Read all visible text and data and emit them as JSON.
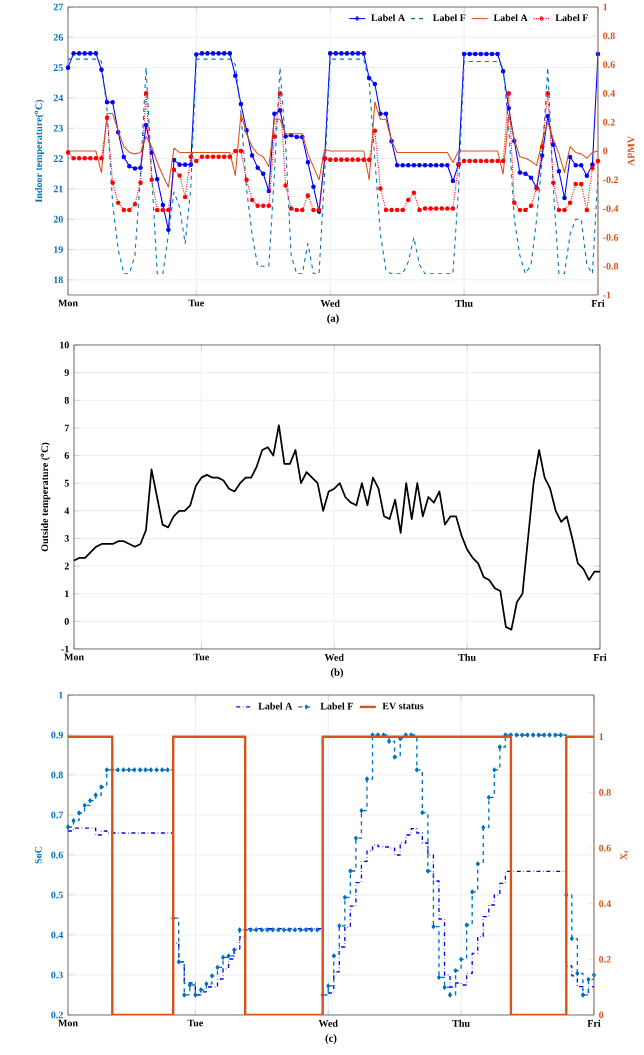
{
  "chart_data": [
    {
      "type": "line",
      "ylabel": "Indoor temperature($^{o}$C)",
      "y2label": "APMV",
      "annotations": [
        "(a)"
      ],
      "categories": [
        "Mon",
        null,
        null,
        null,
        null,
        null,
        null,
        null,
        null,
        null,
        null,
        null,
        null,
        null,
        null,
        null,
        null,
        null,
        null,
        null,
        null,
        null,
        null,
        "Tue",
        null,
        null,
        null,
        null,
        null,
        null,
        null,
        null,
        null,
        null,
        null,
        null,
        null,
        null,
        null,
        null,
        null,
        null,
        null,
        null,
        null,
        null,
        null,
        "Wed",
        null,
        null,
        null,
        null,
        null,
        null,
        null,
        null,
        null,
        null,
        null,
        null,
        null,
        null,
        null,
        null,
        null,
        null,
        null,
        null,
        null,
        null,
        null,
        "Thu",
        null,
        null,
        null,
        null,
        null,
        null,
        null,
        null,
        null,
        null,
        null,
        null,
        null,
        null,
        null,
        null,
        null,
        null,
        null,
        null,
        null,
        null,
        null,
        "Fri"
      ],
      "ylim": [
        17.5,
        27
      ],
      "yticks": [
        18,
        19,
        20,
        21,
        22,
        23,
        24,
        25,
        26,
        27
      ],
      "y2lim": [
        -1,
        1
      ],
      "y2ticks": [
        -1,
        -0.8,
        -0.6,
        -0.4,
        -0.2,
        0,
        0.2,
        0.4,
        0.6,
        0.8,
        1
      ],
      "grid": true,
      "legend": "top right",
      "series": [
        {
          "name": "Label A",
          "color": "#0000ff",
          "marker": "circle",
          "line_style": "solid",
          "values": [
            25.0,
            25.47,
            25.47,
            25.47,
            25.47,
            25.47,
            24.93,
            23.86,
            23.86,
            22.87,
            22.05,
            21.75,
            21.67,
            21.7,
            23.1,
            22.2,
            21.32,
            20.47,
            19.65,
            21.95,
            21.8,
            21.8,
            21.8,
            25.43,
            25.47,
            25.47,
            25.47,
            25.47,
            25.47,
            25.47,
            24.73,
            23.8,
            22.93,
            22.1,
            21.7,
            21.5,
            20.93,
            23.48,
            23.59,
            22.73,
            22.77,
            22.71,
            22.71,
            21.88,
            21.07,
            20.25,
            22.0,
            25.47,
            25.47,
            25.47,
            25.47,
            25.47,
            25.47,
            25.47,
            24.65,
            24.46,
            23.48,
            23.48,
            22.57,
            21.78,
            21.78,
            21.78,
            21.78,
            21.78,
            21.78,
            21.78,
            21.78,
            21.78,
            21.78,
            21.26,
            21.8,
            25.45,
            25.45,
            25.45,
            25.45,
            25.45,
            25.45,
            25.45,
            24.88,
            23.66,
            22.58,
            21.54,
            21.5,
            21.37,
            21.04,
            22.1,
            23.4,
            22.46,
            21.58,
            20.7,
            22.05,
            21.78,
            21.78,
            21.43,
            21.8,
            25.45
          ]
        },
        {
          "name": "Label F",
          "color": "#0072bd",
          "marker": "none",
          "line_style": "dashed",
          "values": [
            25.28,
            25.28,
            25.28,
            25.28,
            25.28,
            25.28,
            25.2,
            23.6,
            20.5,
            19.0,
            18.2,
            18.2,
            18.8,
            21.5,
            25.0,
            21.5,
            18.2,
            18.2,
            19.5,
            20.9,
            20.4,
            19.2,
            21.0,
            25.28,
            25.28,
            25.28,
            25.28,
            25.28,
            25.28,
            25.28,
            25.1,
            23.5,
            21.0,
            19.5,
            18.45,
            18.45,
            18.45,
            21.5,
            25.0,
            22.5,
            18.8,
            18.2,
            18.2,
            19.2,
            18.2,
            18.2,
            21.5,
            25.28,
            25.28,
            25.28,
            25.28,
            25.28,
            25.28,
            25.28,
            24.5,
            22.0,
            19.5,
            18.3,
            18.2,
            18.2,
            18.2,
            18.6,
            19.4,
            18.5,
            18.2,
            18.2,
            18.2,
            18.2,
            18.2,
            18.2,
            21.0,
            25.2,
            25.2,
            25.2,
            25.2,
            25.2,
            25.2,
            25.2,
            25.0,
            23.0,
            20.0,
            18.8,
            18.2,
            18.5,
            20.0,
            22.0,
            25.0,
            21.0,
            18.2,
            18.2,
            19.5,
            20.0,
            20.0,
            18.5,
            18.2,
            21.5
          ]
        },
        {
          "name": "Label A",
          "color": "#d95319",
          "marker": "none",
          "line_style": "solid",
          "axis": "y2",
          "values": [
            0.0,
            0.0,
            0.0,
            0.0,
            0.0,
            0.0,
            -0.15,
            0.26,
            0.26,
            0.14,
            0.03,
            -0.01,
            -0.02,
            -0.01,
            0.1,
            0.03,
            -0.08,
            -0.17,
            -0.25,
            0.02,
            -0.01,
            -0.01,
            -0.01,
            -0.01,
            -0.01,
            -0.01,
            -0.01,
            -0.01,
            -0.01,
            -0.01,
            -0.17,
            0.26,
            0.12,
            0.03,
            -0.02,
            -0.04,
            -0.11,
            0.22,
            0.22,
            0.12,
            0.12,
            0.12,
            0.12,
            -0.02,
            -0.11,
            -0.2,
            0.01,
            0.0,
            0.0,
            0.0,
            0.0,
            0.0,
            0.0,
            0.0,
            -0.2,
            0.34,
            0.22,
            0.22,
            0.07,
            -0.01,
            -0.01,
            -0.01,
            -0.01,
            -0.01,
            -0.01,
            -0.01,
            -0.01,
            -0.01,
            -0.01,
            -0.08,
            0.0,
            0.0,
            0.0,
            0.0,
            0.0,
            0.0,
            0.0,
            0.0,
            -0.16,
            0.25,
            0.08,
            -0.04,
            -0.05,
            -0.07,
            -0.1,
            0.07,
            0.2,
            0.08,
            -0.02,
            -0.15,
            0.03,
            -0.01,
            -0.02,
            -0.05,
            -0.01,
            0.0
          ]
        },
        {
          "name": "Label F",
          "color": "#ff0000",
          "marker": "circle",
          "line_style": "dotted",
          "axis": "y2",
          "values": [
            -0.01,
            -0.05,
            -0.05,
            -0.05,
            -0.05,
            -0.05,
            -0.05,
            0.23,
            -0.22,
            -0.36,
            -0.41,
            -0.41,
            -0.37,
            -0.22,
            0.4,
            -0.2,
            -0.41,
            -0.41,
            -0.41,
            -0.13,
            -0.17,
            -0.32,
            -0.04,
            -0.07,
            -0.04,
            -0.04,
            -0.04,
            -0.04,
            -0.04,
            -0.04,
            0.0,
            0.0,
            -0.2,
            -0.34,
            -0.38,
            -0.38,
            -0.38,
            0.1,
            0.4,
            -0.24,
            -0.4,
            -0.41,
            -0.41,
            -0.31,
            -0.41,
            -0.41,
            -0.05,
            -0.06,
            -0.06,
            -0.06,
            -0.06,
            -0.06,
            -0.06,
            -0.06,
            -0.06,
            0.14,
            -0.26,
            -0.41,
            -0.41,
            -0.41,
            -0.41,
            -0.34,
            -0.29,
            -0.41,
            -0.4,
            -0.4,
            -0.4,
            -0.4,
            -0.4,
            -0.4,
            -0.09,
            -0.07,
            -0.07,
            -0.07,
            -0.07,
            -0.07,
            -0.07,
            -0.07,
            -0.07,
            0.4,
            -0.36,
            -0.41,
            -0.41,
            -0.38,
            -0.26,
            0.03,
            0.4,
            -0.22,
            -0.41,
            -0.41,
            -0.36,
            -0.23,
            -0.23,
            -0.41,
            -0.12,
            -0.07
          ]
        }
      ]
    },
    {
      "type": "line",
      "ylabel": "Outside temperature ($^{o}$C)",
      "annotations": [
        "(b)"
      ],
      "categories": [
        "Mon",
        null,
        null,
        null,
        null,
        null,
        null,
        null,
        null,
        null,
        null,
        null,
        null,
        null,
        null,
        null,
        null,
        null,
        null,
        null,
        null,
        null,
        null,
        "Tue",
        null,
        null,
        null,
        null,
        null,
        null,
        null,
        null,
        null,
        null,
        null,
        null,
        null,
        null,
        null,
        null,
        null,
        null,
        null,
        null,
        null,
        null,
        null,
        "Wed",
        null,
        null,
        null,
        null,
        null,
        null,
        null,
        null,
        null,
        null,
        null,
        null,
        null,
        null,
        null,
        null,
        null,
        null,
        null,
        null,
        null,
        null,
        null,
        "Thu",
        null,
        null,
        null,
        null,
        null,
        null,
        null,
        null,
        null,
        null,
        null,
        null,
        null,
        null,
        null,
        null,
        null,
        null,
        null,
        null,
        null,
        null,
        null,
        "Fri"
      ],
      "ylim": [
        -1,
        10
      ],
      "yticks": [
        -1,
        0,
        1,
        2,
        3,
        4,
        5,
        6,
        7,
        8,
        9,
        10
      ],
      "grid": true,
      "series": [
        {
          "color": "#000000",
          "line_style": "solid",
          "values": [
            2.2,
            2.3,
            2.3,
            2.5,
            2.7,
            2.8,
            2.8,
            2.8,
            2.9,
            2.9,
            2.8,
            2.7,
            2.8,
            3.3,
            5.5,
            4.5,
            3.5,
            3.4,
            3.8,
            4.0,
            4.0,
            4.2,
            4.9,
            5.2,
            5.3,
            5.2,
            5.2,
            5.1,
            4.8,
            4.7,
            5.0,
            5.2,
            5.2,
            5.6,
            6.2,
            6.3,
            6.0,
            7.1,
            5.7,
            5.7,
            6.2,
            5.0,
            5.4,
            5.2,
            5.0,
            4.0,
            4.7,
            4.8,
            5.0,
            4.5,
            4.3,
            4.2,
            5.0,
            4.2,
            5.2,
            4.8,
            3.8,
            3.7,
            4.4,
            3.2,
            5.0,
            3.7,
            5.0,
            3.8,
            4.5,
            4.3,
            4.7,
            3.5,
            3.8,
            3.8,
            3.1,
            2.6,
            2.3,
            2.1,
            1.6,
            1.5,
            1.2,
            1.1,
            -0.2,
            -0.3,
            0.7,
            1.0,
            3.0,
            5.0,
            6.2,
            5.2,
            4.8,
            4.0,
            3.6,
            3.8,
            3.0,
            2.1,
            1.9,
            1.5,
            1.8,
            1.8
          ]
        }
      ]
    },
    {
      "type": "step",
      "ylabel": "SoC",
      "y2label": "X$_{t}$",
      "annotations": [
        "(c)"
      ],
      "categories": [
        "Mon",
        null,
        null,
        null,
        null,
        null,
        null,
        null,
        null,
        null,
        null,
        null,
        null,
        null,
        null,
        null,
        null,
        null,
        null,
        null,
        null,
        null,
        null,
        "Tue",
        null,
        null,
        null,
        null,
        null,
        null,
        null,
        null,
        null,
        null,
        null,
        null,
        null,
        null,
        null,
        null,
        null,
        null,
        null,
        null,
        null,
        null,
        null,
        "Wed",
        null,
        null,
        null,
        null,
        null,
        null,
        null,
        null,
        null,
        null,
        null,
        null,
        null,
        null,
        null,
        null,
        null,
        null,
        null,
        null,
        null,
        null,
        null,
        "Thu",
        null,
        null,
        null,
        null,
        null,
        null,
        null,
        null,
        null,
        null,
        null,
        null,
        null,
        null,
        null,
        null,
        null,
        null,
        null,
        null,
        null,
        null,
        null,
        "Fri"
      ],
      "ylim": [
        0.2,
        1
      ],
      "yticks": [
        0.2,
        0.3,
        0.4,
        0.5,
        0.6,
        0.7,
        0.8,
        0.9,
        1
      ],
      "y2lim": [
        0,
        1.15
      ],
      "y2ticks": [
        0,
        0.2,
        0.4,
        0.6,
        0.8,
        1
      ],
      "grid": true,
      "legend": "top",
      "series": [
        {
          "name": "Label A",
          "color": "#0000ff",
          "marker": "none",
          "line_style": "dashdot",
          "values": [
            0.66,
            0.667,
            0.667,
            0.667,
            0.667,
            0.65,
            0.66,
            0.655,
            0.655,
            0.655,
            0.655,
            0.655,
            0.655,
            0.655,
            0.655,
            0.655,
            0.655,
            0.655,
            0.655,
            0.38,
            0.333,
            0.28,
            0.28,
            0.25,
            0.258,
            0.27,
            0.27,
            0.29,
            0.316,
            0.34,
            0.365,
            0.395,
            0.416,
            0.416,
            0.416,
            0.416,
            0.416,
            0.416,
            0.416,
            0.416,
            0.416,
            0.416,
            0.416,
            0.416,
            0.416,
            0.416,
            0.25,
            0.255,
            0.308,
            0.37,
            0.42,
            0.472,
            0.531,
            0.584,
            0.61,
            0.625,
            0.621,
            0.62,
            0.617,
            0.6,
            0.63,
            0.65,
            0.666,
            0.655,
            0.63,
            0.6,
            0.535,
            0.44,
            0.3,
            0.27,
            0.28,
            0.275,
            0.304,
            0.354,
            0.396,
            0.446,
            0.475,
            0.5,
            0.529,
            0.559,
            0.559,
            0.559,
            0.559,
            0.559,
            0.559,
            0.559,
            0.559,
            0.559,
            0.559,
            0.559,
            0.323,
            0.298,
            0.271,
            0.25,
            0.271,
            0.263
          ]
        },
        {
          "name": "Label F",
          "color": "#0072bd",
          "marker": "diamond",
          "line_style": "dashed",
          "values": [
            0.67,
            0.686,
            0.705,
            0.724,
            0.736,
            0.75,
            0.77,
            0.813,
            0.813,
            0.813,
            0.813,
            0.813,
            0.813,
            0.813,
            0.813,
            0.813,
            0.813,
            0.813,
            0.813,
            0.442,
            0.333,
            0.25,
            0.275,
            0.25,
            0.263,
            0.278,
            0.298,
            0.319,
            0.344,
            0.348,
            0.363,
            0.413,
            0.413,
            0.413,
            0.413,
            0.413,
            0.413,
            0.413,
            0.413,
            0.413,
            0.413,
            0.413,
            0.413,
            0.413,
            0.413,
            0.413,
            0.25,
            0.273,
            0.348,
            0.423,
            0.494,
            0.56,
            0.642,
            0.711,
            0.79,
            0.9,
            0.9,
            0.9,
            0.884,
            0.845,
            0.891,
            0.9,
            0.9,
            0.813,
            0.706,
            0.56,
            0.421,
            0.294,
            0.269,
            0.25,
            0.311,
            0.339,
            0.425,
            0.508,
            0.578,
            0.669,
            0.744,
            0.813,
            0.87,
            0.9,
            0.9,
            0.9,
            0.9,
            0.9,
            0.9,
            0.9,
            0.9,
            0.9,
            0.9,
            0.9,
            0.5,
            0.391,
            0.304,
            0.25,
            0.289,
            0.3
          ]
        },
        {
          "name": "EV status",
          "color": "#d95319",
          "marker": "none",
          "line_style": "solid",
          "axis": "y2",
          "values": [
            1,
            1,
            1,
            1,
            1,
            1,
            1,
            1,
            0,
            0,
            0,
            0,
            0,
            0,
            0,
            0,
            0,
            0,
            0,
            1,
            1,
            1,
            1,
            1,
            1,
            1,
            1,
            1,
            1,
            1,
            1,
            1,
            0,
            0,
            0,
            0,
            0,
            0,
            0,
            0,
            0,
            0,
            0,
            0,
            0,
            0,
            1,
            1,
            1,
            1,
            1,
            1,
            1,
            1,
            1,
            1,
            1,
            1,
            1,
            1,
            1,
            1,
            1,
            1,
            1,
            1,
            1,
            1,
            1,
            1,
            1,
            1,
            1,
            1,
            1,
            1,
            1,
            1,
            1,
            1,
            0,
            0,
            0,
            0,
            0,
            0,
            0,
            0,
            0,
            0,
            1,
            1,
            1,
            1,
            1,
            1
          ]
        }
      ]
    }
  ]
}
